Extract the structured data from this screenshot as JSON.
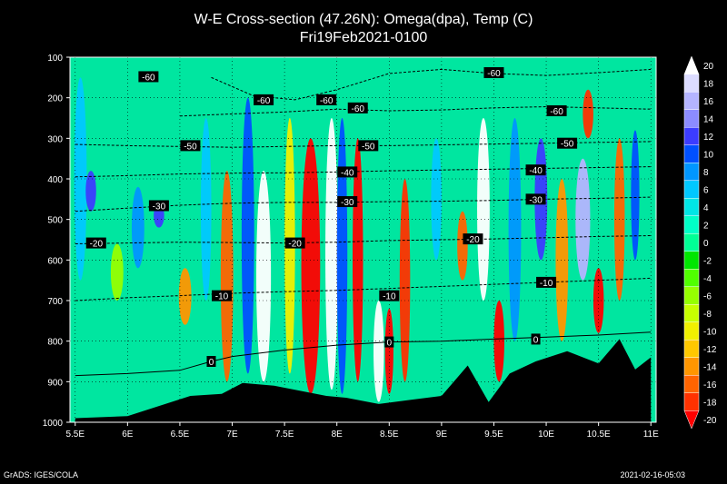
{
  "chart_data": {
    "type": "heatmap",
    "title": "W-E Cross-section (47.26N): Omega(dpa), Temp (C)",
    "subtitle": "Fri19Feb2021-0100",
    "xlabel": "",
    "ylabel": "",
    "x_ticks": [
      "5.5E",
      "6E",
      "6.5E",
      "7E",
      "7.5E",
      "8E",
      "8.5E",
      "9E",
      "9.5E",
      "10E",
      "10.5E",
      "11E"
    ],
    "x_tick_values": [
      5.5,
      6,
      6.5,
      7,
      7.5,
      8,
      8.5,
      9,
      9.5,
      10,
      10.5,
      11
    ],
    "xlim": [
      5.45,
      11.05
    ],
    "y_ticks": [
      "100",
      "200",
      "300",
      "400",
      "500",
      "600",
      "700",
      "800",
      "900",
      "1000"
    ],
    "y_tick_values": [
      100,
      200,
      300,
      400,
      500,
      600,
      700,
      800,
      900,
      1000
    ],
    "ylim": [
      1000,
      100
    ],
    "colorbar": {
      "labels": [
        "20",
        "18",
        "16",
        "14",
        "12",
        "10",
        "8",
        "6",
        "4",
        "2",
        "0",
        "-2",
        "-4",
        "-6",
        "-8",
        "-10",
        "-12",
        "-14",
        "-16",
        "-18",
        "-20"
      ],
      "colors": [
        "#ffffff",
        "#dcdcff",
        "#b4b4ff",
        "#8c8cff",
        "#3c3cff",
        "#0050ff",
        "#0096ff",
        "#00c8ff",
        "#00e6e6",
        "#00ffc8",
        "#00ff96",
        "#00e600",
        "#50ff00",
        "#96ff00",
        "#c8ff00",
        "#f0f000",
        "#ffc800",
        "#ff9600",
        "#ff6400",
        "#ff3200",
        "#ff0000"
      ]
    },
    "series": [
      {
        "type": "contour",
        "values": [
          [
            5.5,
            700
          ],
          [
            6,
            693
          ],
          [
            6.5,
            688
          ],
          [
            7,
            682
          ],
          [
            7.5,
            678
          ],
          [
            8,
            675
          ],
          [
            8.5,
            670
          ],
          [
            9,
            665
          ],
          [
            9.5,
            660
          ],
          [
            10,
            655
          ],
          [
            10.5,
            650
          ],
          [
            11,
            645
          ]
        ]
      },
      {
        "type": "contour",
        "values": [
          [
            5.5,
            560
          ],
          [
            6,
            558
          ],
          [
            6.5,
            556
          ],
          [
            7,
            557
          ],
          [
            7.5,
            558
          ],
          [
            8,
            556
          ],
          [
            8.5,
            552
          ],
          [
            9,
            550
          ],
          [
            9.5,
            548
          ],
          [
            10,
            545
          ],
          [
            10.5,
            542
          ],
          [
            11,
            540
          ]
        ]
      },
      {
        "type": "contour",
        "values": [
          [
            5.5,
            480
          ],
          [
            6,
            472
          ],
          [
            6.5,
            465
          ],
          [
            7,
            460
          ],
          [
            7.5,
            458
          ],
          [
            8,
            458
          ],
          [
            8.5,
            456
          ],
          [
            9,
            455
          ],
          [
            9.5,
            453
          ],
          [
            10,
            450
          ],
          [
            10.5,
            448
          ],
          [
            11,
            445
          ]
        ]
      },
      {
        "type": "contour",
        "values": [
          [
            5.5,
            395
          ],
          [
            6,
            392
          ],
          [
            6.5,
            388
          ],
          [
            7,
            386
          ],
          [
            7.5,
            385
          ],
          [
            8,
            383
          ],
          [
            8.5,
            380
          ],
          [
            9,
            378
          ],
          [
            9.5,
            376
          ],
          [
            10,
            374
          ],
          [
            10.5,
            372
          ],
          [
            11,
            370
          ]
        ]
      },
      {
        "type": "contour",
        "values": [
          [
            5.5,
            315
          ],
          [
            6,
            318
          ],
          [
            6.5,
            320
          ],
          [
            7,
            322
          ],
          [
            7.5,
            320
          ],
          [
            8,
            318
          ],
          [
            8.5,
            318
          ],
          [
            9,
            316
          ],
          [
            9.5,
            314
          ],
          [
            10,
            312
          ],
          [
            10.5,
            310
          ],
          [
            11,
            308
          ]
        ]
      },
      {
        "type": "contour",
        "values": [
          [
            6.5,
            245
          ],
          [
            7,
            240
          ],
          [
            7.5,
            235
          ],
          [
            8,
            228
          ],
          [
            8.5,
            232
          ],
          [
            9,
            230
          ],
          [
            9.5,
            225
          ],
          [
            10,
            222
          ],
          [
            10.5,
            225
          ],
          [
            11,
            228
          ]
        ]
      },
      {
        "type": "contour",
        "values": [
          [
            6.8,
            150
          ],
          [
            7.2,
            195
          ],
          [
            7.6,
            205
          ],
          [
            8,
            180
          ],
          [
            8.5,
            140
          ],
          [
            9,
            130
          ],
          [
            9.5,
            140
          ],
          [
            10,
            145
          ],
          [
            10.5,
            138
          ],
          [
            11,
            130
          ]
        ]
      },
      {
        "type": "contour",
        "values": [
          [
            5.5,
            885
          ],
          [
            6,
            880
          ],
          [
            6.5,
            872
          ],
          [
            6.8,
            850
          ],
          [
            7,
            838
          ],
          [
            7.5,
            822
          ],
          [
            8,
            810
          ],
          [
            8.5,
            802
          ],
          [
            9,
            800
          ],
          [
            9.5,
            795
          ],
          [
            10,
            790
          ],
          [
            10.5,
            785
          ],
          [
            11,
            778
          ]
        ]
      }
    ],
    "contour_labels": [
      {
        "text": "-60",
        "x": 6.2,
        "y": 148
      },
      {
        "text": "-60",
        "x": 7.9,
        "y": 205
      },
      {
        "text": "-60",
        "x": 7.3,
        "y": 205
      },
      {
        "text": "-60",
        "x": 8.2,
        "y": 225
      },
      {
        "text": "-60",
        "x": 9.5,
        "y": 138
      },
      {
        "text": "-60",
        "x": 10.1,
        "y": 232
      },
      {
        "text": "-50",
        "x": 6.6,
        "y": 318
      },
      {
        "text": "-50",
        "x": 8.3,
        "y": 318
      },
      {
        "text": "-50",
        "x": 10.2,
        "y": 312
      },
      {
        "text": "-40",
        "x": 8.1,
        "y": 383
      },
      {
        "text": "-40",
        "x": 9.9,
        "y": 378
      },
      {
        "text": "-30",
        "x": 6.3,
        "y": 466
      },
      {
        "text": "-30",
        "x": 8.1,
        "y": 456
      },
      {
        "text": "-30",
        "x": 9.9,
        "y": 450
      },
      {
        "text": "-20",
        "x": 5.7,
        "y": 558
      },
      {
        "text": "-20",
        "x": 7.6,
        "y": 558
      },
      {
        "text": "-20",
        "x": 9.3,
        "y": 548
      },
      {
        "text": "-10",
        "x": 6.9,
        "y": 688
      },
      {
        "text": "-10",
        "x": 8.5,
        "y": 688
      },
      {
        "text": "-10",
        "x": 10.0,
        "y": 655
      },
      {
        "text": "0",
        "x": 6.8,
        "y": 850
      },
      {
        "text": "0",
        "x": 8.5,
        "y": 802
      },
      {
        "text": "0",
        "x": 9.9,
        "y": 795
      }
    ],
    "terrain": [
      [
        5.5,
        990
      ],
      [
        6,
        985
      ],
      [
        6.3,
        960
      ],
      [
        6.6,
        935
      ],
      [
        6.9,
        930
      ],
      [
        7.1,
        903
      ],
      [
        7.4,
        910
      ],
      [
        7.7,
        925
      ],
      [
        7.9,
        935
      ],
      [
        8.1,
        940
      ],
      [
        8.4,
        955
      ],
      [
        8.7,
        945
      ],
      [
        9,
        935
      ],
      [
        9.25,
        860
      ],
      [
        9.45,
        950
      ],
      [
        9.65,
        880
      ],
      [
        9.9,
        850
      ],
      [
        10.2,
        825
      ],
      [
        10.5,
        855
      ],
      [
        10.7,
        795
      ],
      [
        10.85,
        870
      ],
      [
        11,
        840
      ]
    ]
  },
  "footer": {
    "left": "GrADS: IGES/COLA",
    "right": "2021-02-16-05:03"
  }
}
